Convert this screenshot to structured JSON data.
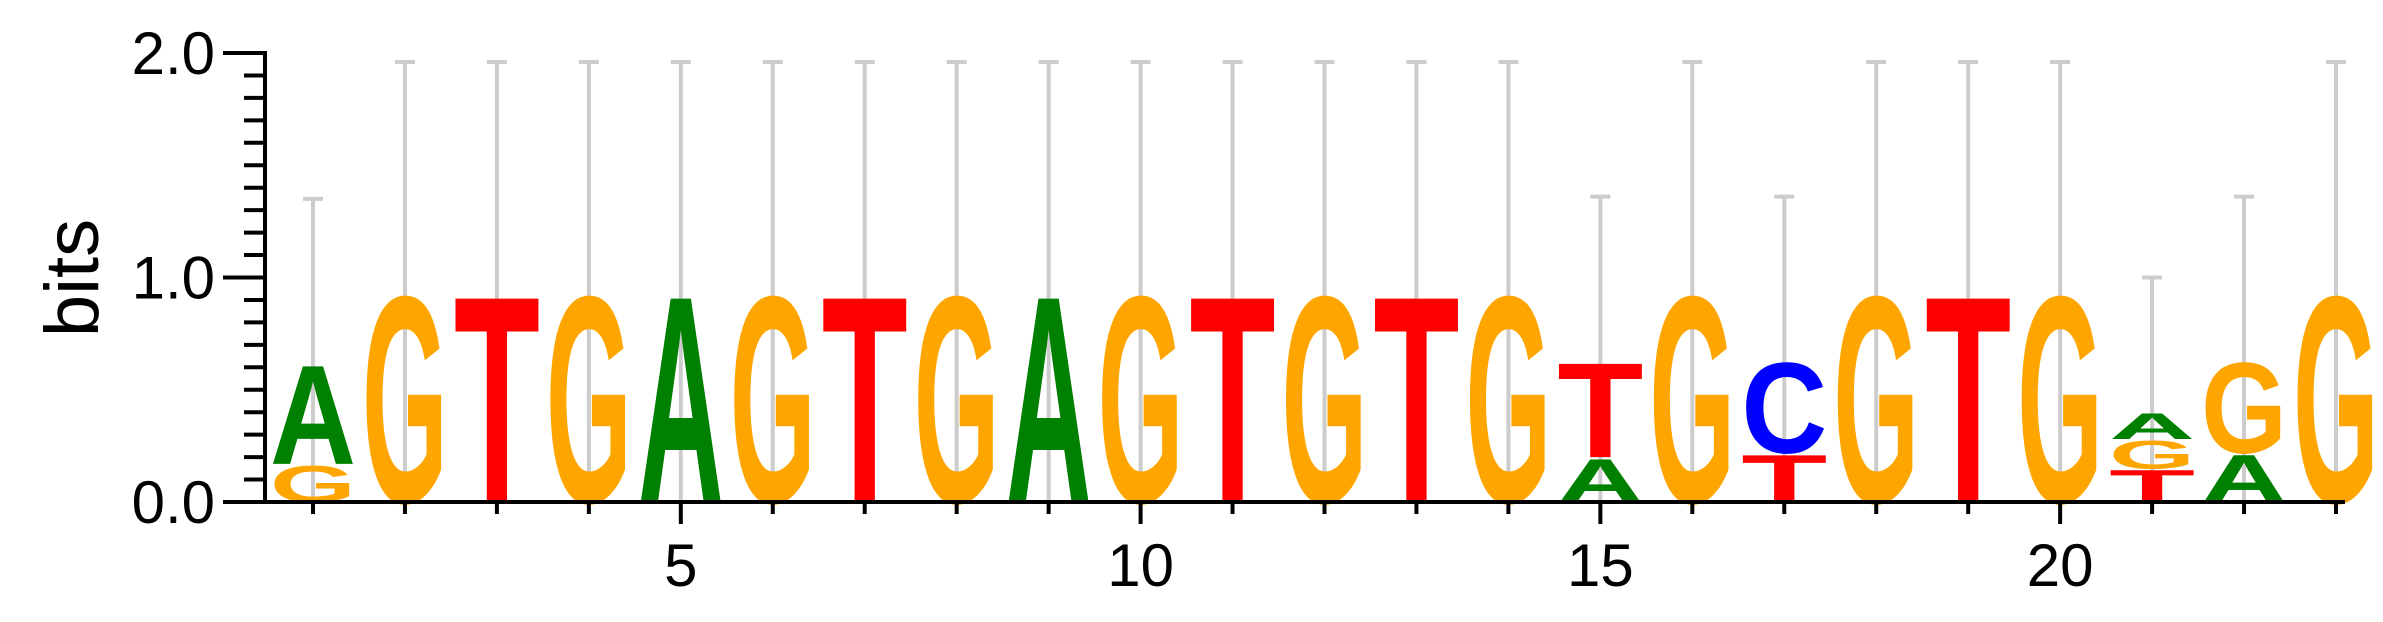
{
  "chart_data": {
    "type": "sequence-logo",
    "ylabel": "bits",
    "ylim": [
      0,
      2
    ],
    "ytick_labels": [
      "0.0",
      "1.0",
      "2.0"
    ],
    "ytick_values": [
      0,
      1,
      2
    ],
    "xtick_labels": [
      "5",
      "10",
      "15",
      "20"
    ],
    "xtick_values": [
      5,
      10,
      15,
      20
    ],
    "x_range": [
      1,
      23
    ],
    "colors": {
      "A": "#008000",
      "C": "#0000ff",
      "G": "#ffa500",
      "T": "#ff0000",
      "errorbar": "#cccccc",
      "axis": "#000000"
    },
    "positions": [
      {
        "pos": 1,
        "error": 0.72,
        "letters": [
          {
            "base": "G",
            "bits": 0.17
          },
          {
            "base": "A",
            "bits": 0.46
          }
        ]
      },
      {
        "pos": 2,
        "error": 1.0,
        "letters": [
          {
            "base": "G",
            "bits": 0.96
          }
        ]
      },
      {
        "pos": 3,
        "error": 1.0,
        "letters": [
          {
            "base": "T",
            "bits": 0.96
          }
        ]
      },
      {
        "pos": 4,
        "error": 1.0,
        "letters": [
          {
            "base": "G",
            "bits": 0.96
          }
        ]
      },
      {
        "pos": 5,
        "error": 1.0,
        "letters": [
          {
            "base": "A",
            "bits": 0.96
          }
        ]
      },
      {
        "pos": 6,
        "error": 1.0,
        "letters": [
          {
            "base": "G",
            "bits": 0.96
          }
        ]
      },
      {
        "pos": 7,
        "error": 1.0,
        "letters": [
          {
            "base": "T",
            "bits": 0.96
          }
        ]
      },
      {
        "pos": 8,
        "error": 1.0,
        "letters": [
          {
            "base": "G",
            "bits": 0.96
          }
        ]
      },
      {
        "pos": 9,
        "error": 1.0,
        "letters": [
          {
            "base": "A",
            "bits": 0.96
          }
        ]
      },
      {
        "pos": 10,
        "error": 1.0,
        "letters": [
          {
            "base": "G",
            "bits": 0.96
          }
        ]
      },
      {
        "pos": 11,
        "error": 1.0,
        "letters": [
          {
            "base": "T",
            "bits": 0.96
          }
        ]
      },
      {
        "pos": 12,
        "error": 1.0,
        "letters": [
          {
            "base": "G",
            "bits": 0.96
          }
        ]
      },
      {
        "pos": 13,
        "error": 1.0,
        "letters": [
          {
            "base": "T",
            "bits": 0.96
          }
        ]
      },
      {
        "pos": 14,
        "error": 1.0,
        "letters": [
          {
            "base": "G",
            "bits": 0.96
          }
        ]
      },
      {
        "pos": 15,
        "error": 0.72,
        "letters": [
          {
            "base": "A",
            "bits": 0.2
          },
          {
            "base": "T",
            "bits": 0.44
          }
        ]
      },
      {
        "pos": 16,
        "error": 1.0,
        "letters": [
          {
            "base": "G",
            "bits": 0.96
          }
        ]
      },
      {
        "pos": 17,
        "error": 0.72,
        "letters": [
          {
            "base": "T",
            "bits": 0.22
          },
          {
            "base": "C",
            "bits": 0.42
          }
        ]
      },
      {
        "pos": 18,
        "error": 1.0,
        "letters": [
          {
            "base": "G",
            "bits": 0.96
          }
        ]
      },
      {
        "pos": 19,
        "error": 1.0,
        "letters": [
          {
            "base": "T",
            "bits": 0.96
          }
        ]
      },
      {
        "pos": 20,
        "error": 1.0,
        "letters": [
          {
            "base": "G",
            "bits": 0.96
          }
        ]
      },
      {
        "pos": 21,
        "error": 0.6,
        "letters": [
          {
            "base": "T",
            "bits": 0.15
          },
          {
            "base": "G",
            "bits": 0.13
          },
          {
            "base": "A",
            "bits": 0.12
          }
        ]
      },
      {
        "pos": 22,
        "error": 0.72,
        "letters": [
          {
            "base": "A",
            "bits": 0.22
          },
          {
            "base": "G",
            "bits": 0.42
          }
        ]
      },
      {
        "pos": 23,
        "error": 1.0,
        "letters": [
          {
            "base": "G",
            "bits": 0.96
          }
        ]
      }
    ]
  }
}
